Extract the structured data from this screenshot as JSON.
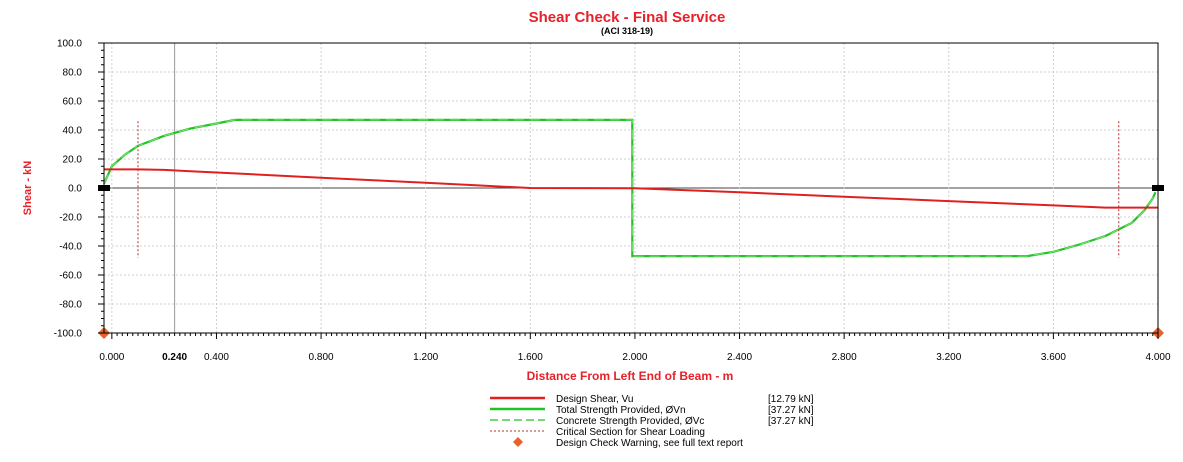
{
  "chart_data": {
    "type": "line",
    "title": "Shear Check - Final Service",
    "subtitle": "(ACI 318-19)",
    "xlabel": "Distance From Left End of Beam - m",
    "ylabel": "Shear - kN",
    "xlim": [
      -0.03,
      4.0
    ],
    "ylim": [
      -100,
      100
    ],
    "x_ticks": [
      "0.000",
      "0.400",
      "0.800",
      "1.200",
      "1.600",
      "2.000",
      "2.400",
      "2.800",
      "3.200",
      "3.600",
      "4.000"
    ],
    "x_tick_values": [
      0,
      0.4,
      0.8,
      1.2,
      1.6,
      2.0,
      2.4,
      2.8,
      3.2,
      3.6,
      4.0
    ],
    "y_ticks": [
      "100.0",
      "80.0",
      "60.0",
      "40.0",
      "20.0",
      "0.0",
      "-20.0",
      "-40.0",
      "-60.0",
      "-80.0",
      "-100.0"
    ],
    "y_tick_values": [
      100,
      80,
      60,
      40,
      20,
      0,
      -20,
      -40,
      -60,
      -80,
      -100
    ],
    "cursor_value": 0.24,
    "cursor_label": "0.240",
    "colors": {
      "title": "#e8202a",
      "design_shear": "#e02020",
      "total_strength": "#22c422",
      "concrete_strength": "#22c422",
      "critical_section": "#b33030",
      "warning": "#e8602a",
      "cursor": "#999999",
      "grid": "#cfcfcf"
    },
    "series": [
      {
        "name": "Design Shear, Vu",
        "value_label": "[12.79  kN]",
        "style": "solid",
        "x": [
          -0.03,
          0.0,
          0.1,
          0.2,
          0.3,
          0.4,
          0.6,
          0.8,
          1.0,
          1.2,
          1.4,
          1.6,
          1.8,
          2.0,
          2.2,
          2.4,
          2.6,
          2.8,
          3.0,
          3.2,
          3.4,
          3.6,
          3.8,
          3.9,
          4.0
        ],
        "y": [
          12.8,
          12.8,
          12.8,
          12.5,
          11.6,
          10.7,
          8.9,
          7.1,
          5.4,
          3.6,
          1.8,
          0.0,
          -0.1,
          -0.2,
          -1.5,
          -3.0,
          -4.5,
          -6.0,
          -7.5,
          -9.0,
          -10.5,
          -12.0,
          -13.5,
          -13.5,
          -13.5
        ]
      },
      {
        "name": "Total Strength Provided, ØVn",
        "value_label": "[37.27  kN]",
        "style": "solid",
        "x": [
          -0.03,
          0.0,
          0.05,
          0.1,
          0.2,
          0.3,
          0.4,
          0.47,
          1.0,
          1.99,
          1.99,
          2.0,
          3.5,
          3.6,
          3.7,
          3.8,
          3.9,
          3.95,
          3.98,
          3.99
        ],
        "y": [
          3.0,
          15.0,
          23.0,
          29.0,
          36.0,
          41.0,
          44.5,
          47.0,
          47.0,
          47.0,
          -47.0,
          -47.0,
          -47.0,
          -44.0,
          -39.0,
          -33.0,
          -24.0,
          -15.0,
          -7.0,
          -3.0
        ]
      },
      {
        "name": "Concrete Strength Provided, ØVc",
        "value_label": "[37.27  kN]",
        "style": "dashed",
        "x": [
          -0.03,
          0.0,
          0.05,
          0.1,
          0.2,
          0.3,
          0.4,
          0.47,
          1.0,
          1.99,
          1.99,
          2.0,
          3.5,
          3.6,
          3.7,
          3.8,
          3.9,
          3.95,
          3.98,
          3.99
        ],
        "y": [
          3.0,
          15.0,
          23.0,
          29.0,
          36.0,
          41.0,
          44.5,
          47.0,
          47.0,
          47.0,
          -47.0,
          -47.0,
          -47.0,
          -44.0,
          -39.0,
          -33.0,
          -24.0,
          -15.0,
          -7.0,
          -3.0
        ]
      },
      {
        "name": "Critical Section for Shear Loading",
        "style": "dotted",
        "x": [
          0.1,
          3.85
        ],
        "y_range": [
          -48,
          46
        ]
      },
      {
        "name": "Design Check Warning, see full text report",
        "style": "marker",
        "x": [
          -0.03,
          4.0
        ],
        "y": [
          -100,
          -100
        ]
      }
    ]
  }
}
